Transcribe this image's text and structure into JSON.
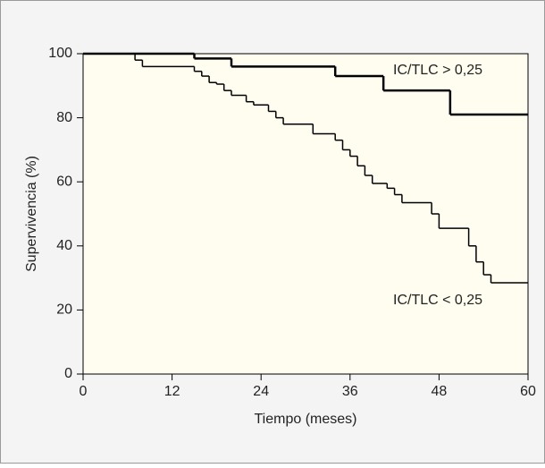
{
  "chart_data": {
    "type": "step",
    "xlabel": "Tiempo (meses)",
    "ylabel": "Supervivencia (%)",
    "xlim": [
      0,
      60
    ],
    "xticks": [
      0,
      12,
      24,
      36,
      48,
      60
    ],
    "ylim": [
      0,
      100
    ],
    "yticks": [
      0,
      20,
      40,
      60,
      80,
      100
    ],
    "series": [
      {
        "name": "IC/TLC > 0,25",
        "color": "#000000",
        "x": [
          0,
          15,
          20,
          34,
          40.5,
          49.5,
          60
        ],
        "values": [
          100,
          98.5,
          96,
          93,
          88.5,
          81,
          81
        ]
      },
      {
        "name": "IC/TLC < 0,25",
        "color": "#000000",
        "x": [
          0,
          7,
          8,
          15,
          16,
          17,
          18,
          19,
          20,
          22,
          23,
          25,
          26,
          27,
          31,
          34,
          35,
          36,
          37,
          38,
          39,
          41,
          42,
          43,
          47,
          48,
          52,
          53,
          54,
          55,
          60
        ],
        "values": [
          100,
          98,
          96,
          94.5,
          93,
          91,
          90.5,
          88.5,
          87,
          85,
          84,
          82,
          80,
          78,
          75,
          73,
          70,
          68,
          65,
          62,
          59.5,
          58,
          56,
          53.5,
          50,
          45.5,
          40,
          35,
          31,
          28.5,
          28.5
        ]
      }
    ]
  }
}
